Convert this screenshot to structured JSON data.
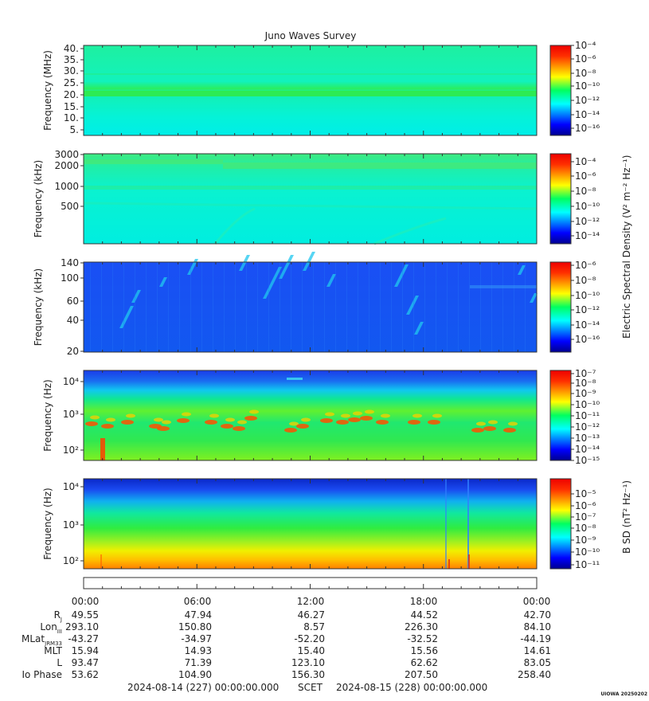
{
  "chart_data": {
    "type": "heatmap",
    "title": "Juno Waves Survey",
    "watermark": "UIOWA 20250202",
    "colorbar_labels": {
      "electric": "Electric Spectral Density (V² m⁻² Hz⁻¹)",
      "magnetic": "B SD (nT² Hz⁻¹)"
    },
    "panels": [
      {
        "id": "p1",
        "ylabel": "Frequency (MHz)",
        "y_ticks": [
          "40.",
          "35.",
          "30.",
          "25.",
          "20.",
          "15.",
          "10.",
          "5."
        ],
        "cbar_ticks": [
          "10⁻⁴",
          "10⁻⁶",
          "10⁻⁸",
          "10⁻¹⁰",
          "10⁻¹²",
          "10⁻¹⁴",
          "10⁻¹⁶"
        ]
      },
      {
        "id": "p2",
        "ylabel": "Frequency (kHz)",
        "y_ticks": [
          "3000",
          "2000",
          "1000",
          "500"
        ],
        "cbar_ticks": [
          "10⁻⁴",
          "10⁻⁶",
          "10⁻⁸",
          "10⁻¹⁰",
          "10⁻¹²",
          "10⁻¹⁴"
        ]
      },
      {
        "id": "p3",
        "ylabel": "Frequency (kHz)",
        "y_ticks": [
          "140",
          "100",
          "60",
          "40",
          "20"
        ],
        "cbar_ticks": [
          "10⁻⁶",
          "10⁻⁸",
          "10⁻¹⁰",
          "10⁻¹²",
          "10⁻¹⁴",
          "10⁻¹⁶"
        ]
      },
      {
        "id": "p4",
        "ylabel": "Frequency (Hz)",
        "y_ticks": [
          "10⁴",
          "10³",
          "10²"
        ],
        "cbar_ticks": [
          "10⁻⁷",
          "10⁻⁸",
          "10⁻⁹",
          "10⁻¹⁰",
          "10⁻¹¹",
          "10⁻¹²",
          "10⁻¹³",
          "10⁻¹⁴",
          "10⁻¹⁵"
        ]
      },
      {
        "id": "p5",
        "ylabel": "Frequency (Hz)",
        "y_ticks": [
          "10⁴",
          "10³",
          "10²"
        ],
        "cbar_ticks": [
          "10⁻⁵",
          "10⁻⁶",
          "10⁻⁷",
          "10⁻⁸",
          "10⁻⁹",
          "10⁻¹⁰",
          "10⁻¹¹"
        ]
      }
    ],
    "x_ticks": [
      "00:00",
      "06:00",
      "12:00",
      "18:00",
      "00:00"
    ],
    "ephemeris": [
      {
        "label": "R",
        "sub": "J",
        "values": [
          "49.55",
          "47.94",
          "46.27",
          "44.52",
          "42.70"
        ]
      },
      {
        "label": "Lon",
        "sub": "III",
        "values": [
          "293.10",
          "150.80",
          "8.57",
          "226.30",
          "84.10"
        ]
      },
      {
        "label": "MLat",
        "sub": "JRM33",
        "values": [
          "-43.27",
          "-34.97",
          "-52.20",
          "-32.52",
          "-44.19"
        ]
      },
      {
        "label": "MLT",
        "sub": "",
        "values": [
          "15.94",
          "14.93",
          "15.40",
          "15.56",
          "14.61"
        ]
      },
      {
        "label": "L",
        "sub": "",
        "values": [
          "93.47",
          "71.39",
          "123.10",
          "62.62",
          "83.05"
        ]
      },
      {
        "label": "Io Phase",
        "sub": "",
        "values": [
          "53.62",
          "104.90",
          "156.30",
          "207.50",
          "258.40"
        ]
      }
    ],
    "time_range": {
      "start": "2024-08-14 (227) 00:00:00.000",
      "frame": "SCET",
      "end": "2024-08-15 (228) 00:00:00.000"
    }
  }
}
